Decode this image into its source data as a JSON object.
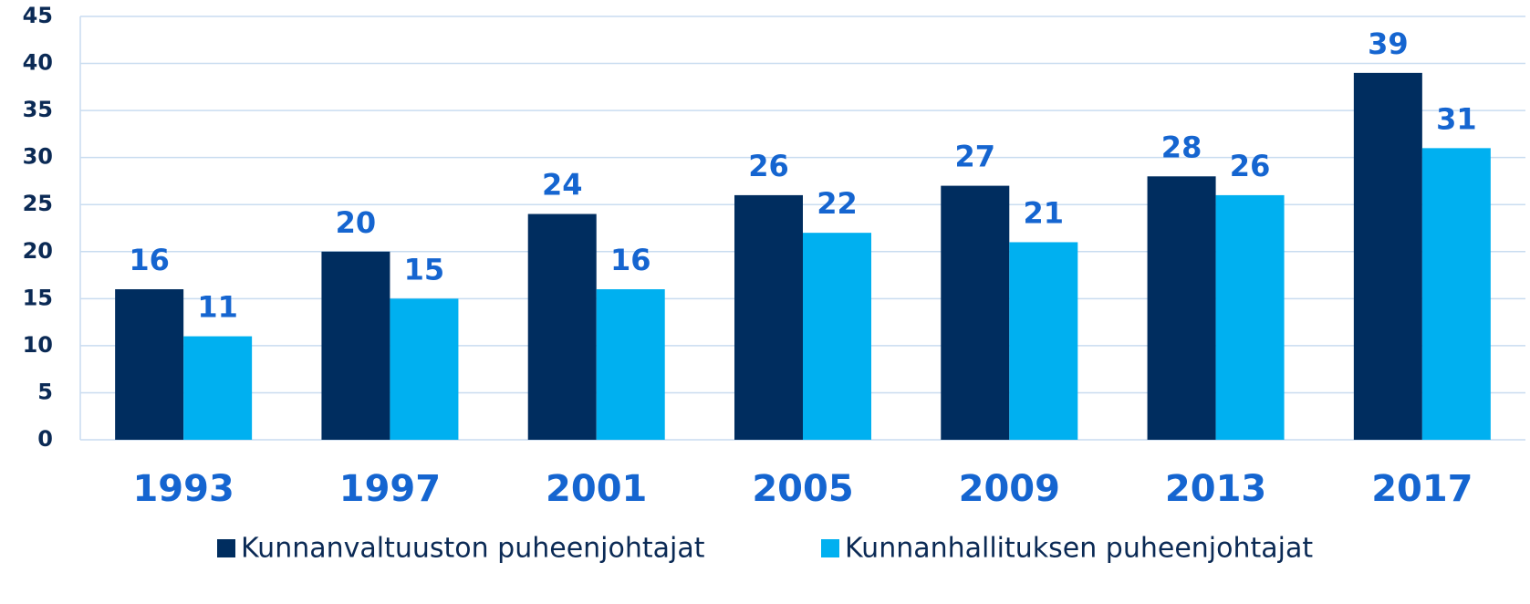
{
  "chart_data": {
    "type": "bar",
    "categories": [
      "1993",
      "1997",
      "2001",
      "2005",
      "2009",
      "2013",
      "2017"
    ],
    "series": [
      {
        "name": "Kunnanvaltuuston puheenjohtajat",
        "color": "#002d5f",
        "values": [
          16,
          20,
          24,
          26,
          27,
          28,
          39
        ]
      },
      {
        "name": "Kunnanhallituksen puheenjohtajat",
        "color": "#00b0f0",
        "values": [
          11,
          15,
          16,
          22,
          21,
          26,
          31
        ]
      }
    ],
    "ylim": [
      0,
      45
    ],
    "yticks": [
      0,
      5,
      10,
      15,
      20,
      25,
      30,
      35,
      40,
      45
    ],
    "grid": true,
    "legend": "bottom"
  }
}
